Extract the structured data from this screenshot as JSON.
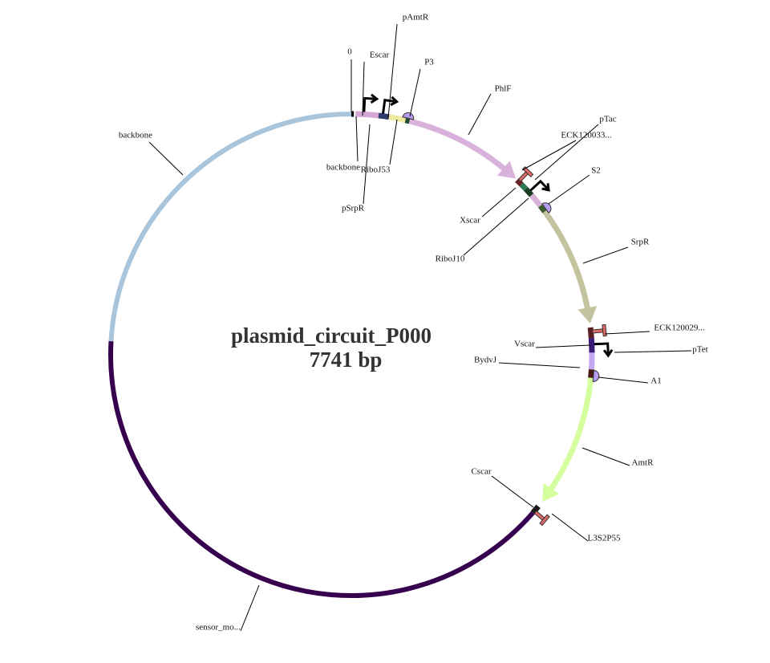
{
  "title": "plasmid_circuit_P000",
  "length": "7741 bp",
  "origin_label": "0",
  "features": [
    {
      "label": "backbone"
    },
    {
      "label": "Escar"
    },
    {
      "label": "pAmtR"
    },
    {
      "label": "P3"
    },
    {
      "label": "PhlF"
    },
    {
      "label": "pTac"
    },
    {
      "label": "ECK120033..."
    },
    {
      "label": "S2"
    },
    {
      "label": "SrpR"
    },
    {
      "label": "ECK120029..."
    },
    {
      "label": "Vscar"
    },
    {
      "label": "pTet"
    },
    {
      "label": "BydvJ"
    },
    {
      "label": "A1"
    },
    {
      "label": "AmtR"
    },
    {
      "label": "Cscar"
    },
    {
      "label": "L3S2P55"
    },
    {
      "label": "sensor_mo..."
    },
    {
      "label": "backbone"
    },
    {
      "label": "RiboJ53"
    },
    {
      "label": "pSrpR"
    },
    {
      "label": "Xscar"
    },
    {
      "label": "RiboJ10"
    }
  ]
}
